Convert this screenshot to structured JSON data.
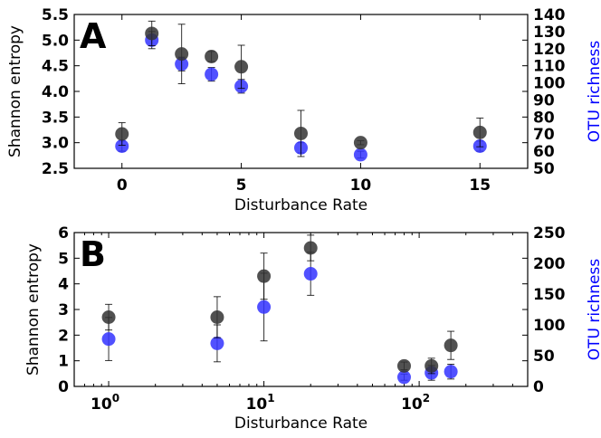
{
  "chart_data": [
    {
      "panel_label": "A",
      "type": "scatter",
      "x_scale": "linear",
      "xlabel": "Disturbance Rate",
      "ylabel": "Shannon entropy",
      "ylabel_right": "OTU richness",
      "xlim": [
        -2,
        17
      ],
      "ylim": [
        2.5,
        5.5
      ],
      "ylim_right": [
        50,
        140
      ],
      "xticks": [
        0,
        5,
        10,
        15
      ],
      "xtick_labels": [
        "0",
        "5",
        "10",
        "15"
      ],
      "yticks": [
        2.5,
        3.0,
        3.5,
        4.0,
        4.5,
        5.0,
        5.5
      ],
      "ytick_labels": [
        "2.5",
        "3.0",
        "3.5",
        "4.0",
        "4.5",
        "5.0",
        "5.5"
      ],
      "yticks_right": [
        50,
        60,
        70,
        80,
        90,
        100,
        110,
        120,
        130,
        140
      ],
      "ytick_labels_right": [
        "50",
        "60",
        "70",
        "80",
        "90",
        "100",
        "110",
        "120",
        "130",
        "140"
      ],
      "series": [
        {
          "axis": "left",
          "color": "#333333",
          "x": [
            0,
            1.25,
            2.5,
            3.75,
            5,
            7.5,
            10,
            15
          ],
          "y": [
            3.17,
            5.13,
            4.73,
            4.68,
            4.48,
            3.18,
            3.0,
            3.2
          ],
          "err": [
            0.22,
            0.24,
            0.58,
            0.1,
            0.42,
            0.45,
            0.04,
            0.28
          ]
        },
        {
          "axis": "right",
          "color": "#3333ff",
          "x": [
            0,
            1.25,
            2.5,
            3.75,
            5,
            7.5,
            10,
            15
          ],
          "y": [
            63,
            125,
            111,
            105,
            98,
            62,
            58,
            63
          ],
          "err": [
            3,
            5,
            4,
            4,
            4,
            3,
            2,
            3
          ]
        }
      ],
      "grid": false
    },
    {
      "panel_label": "B",
      "type": "scatter",
      "x_scale": "log",
      "xlabel": "Disturbance Rate",
      "ylabel": "Shannon entropy",
      "ylabel_right": "OTU richness",
      "xlim": [
        0.6,
        500
      ],
      "ylim": [
        0,
        6
      ],
      "ylim_right": [
        0,
        250
      ],
      "xticks": [
        1,
        10,
        100
      ],
      "xtick_labels": [
        "10^0",
        "10^1",
        "10^2"
      ],
      "yticks": [
        0,
        1,
        2,
        3,
        4,
        5,
        6
      ],
      "ytick_labels": [
        "0",
        "1",
        "2",
        "3",
        "4",
        "5",
        "6"
      ],
      "yticks_right": [
        0,
        50,
        100,
        150,
        200,
        250
      ],
      "ytick_labels_right": [
        "0",
        "50",
        "100",
        "150",
        "200",
        "250"
      ],
      "series": [
        {
          "axis": "left",
          "color": "#333333",
          "x": [
            1,
            5,
            10,
            20,
            80,
            120,
            160
          ],
          "y": [
            2.7,
            2.7,
            4.3,
            5.4,
            0.8,
            0.8,
            1.6
          ],
          "err": [
            0.5,
            0.8,
            0.9,
            0.5,
            0.15,
            0.3,
            0.55
          ]
        },
        {
          "axis": "right",
          "color": "#3333ff",
          "x": [
            1,
            5,
            10,
            20,
            80,
            120,
            160
          ],
          "y": [
            77,
            70,
            129,
            183,
            15,
            22,
            24
          ],
          "err": [
            35,
            30,
            55,
            35,
            5,
            12,
            12
          ]
        }
      ],
      "grid": false
    }
  ]
}
